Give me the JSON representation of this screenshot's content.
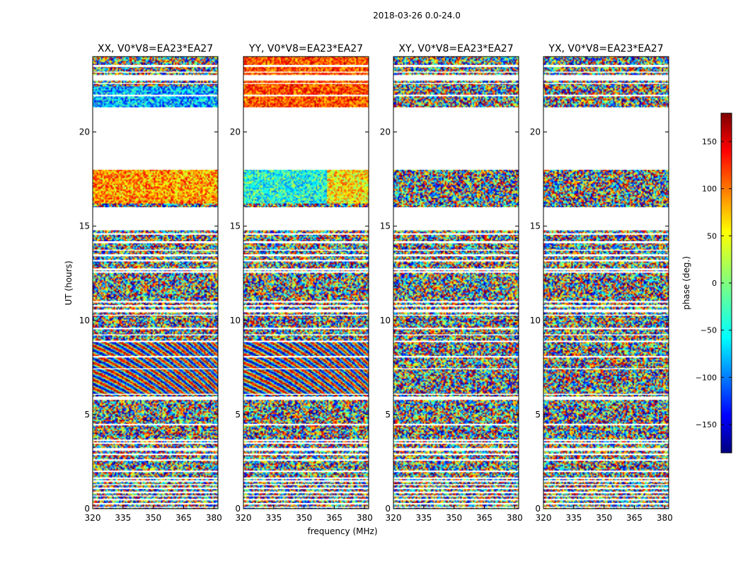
{
  "figure_title": "2018-03-26 0.0-24.0",
  "chart_data": {
    "type": "heatmap",
    "title": "2018-03-26 0.0-24.0",
    "xlabel": "frequency (MHz)",
    "ylabel": "UT (hours)",
    "xlim": [
      320,
      382
    ],
    "ylim": [
      0,
      24
    ],
    "x_ticks": [
      320,
      335,
      350,
      365,
      380
    ],
    "y_ticks": [
      0,
      5,
      10,
      15,
      20
    ],
    "panels": [
      {
        "id": "xx",
        "title": "XX, V0*V8=EA23*EA27",
        "polarization": "XX"
      },
      {
        "id": "yy",
        "title": "YY, V0*V8=EA23*EA27",
        "polarization": "YY"
      },
      {
        "id": "xy",
        "title": "XY, V0*V8=EA23*EA27",
        "polarization": "XY"
      },
      {
        "id": "yx",
        "title": "YX, V0*V8=EA23*EA27",
        "polarization": "YX"
      }
    ],
    "colorbar": {
      "label": "phase (deg.)",
      "range": [
        -180,
        180
      ],
      "ticks": [
        -150,
        -100,
        -50,
        0,
        50,
        100,
        150
      ],
      "tick_labels": [
        "−150",
        "−100",
        "−50",
        "0",
        "50",
        "100",
        "150"
      ],
      "colormap": "jet"
    },
    "data_gaps_ut_hours": [
      [
        0.05,
        0.1
      ],
      [
        0.25,
        0.3
      ],
      [
        0.45,
        0.5
      ],
      [
        0.65,
        0.7
      ],
      [
        0.85,
        0.9
      ],
      [
        1.05,
        1.1
      ],
      [
        1.25,
        1.3
      ],
      [
        1.45,
        1.5
      ],
      [
        1.6,
        1.65
      ],
      [
        1.95,
        2.0
      ],
      [
        2.55,
        2.6
      ],
      [
        2.85,
        2.9
      ],
      [
        3.1,
        3.2
      ],
      [
        3.45,
        3.5
      ],
      [
        3.6,
        3.65
      ],
      [
        4.45,
        4.5
      ],
      [
        5.8,
        5.95
      ],
      [
        6.05,
        6.1
      ],
      [
        7.4,
        7.45
      ],
      [
        8.05,
        8.1
      ],
      [
        8.85,
        8.9
      ],
      [
        9.2,
        9.25
      ],
      [
        9.55,
        9.6
      ],
      [
        10.25,
        10.3
      ],
      [
        10.45,
        10.55
      ],
      [
        10.75,
        10.8
      ],
      [
        10.95,
        11.0
      ],
      [
        12.55,
        12.6
      ],
      [
        12.65,
        12.75
      ],
      [
        13.15,
        13.2
      ],
      [
        13.4,
        13.5
      ],
      [
        13.7,
        13.75
      ],
      [
        14.1,
        14.2
      ],
      [
        14.55,
        14.6
      ],
      [
        14.8,
        16.0
      ],
      [
        18.0,
        21.3
      ],
      [
        21.9,
        21.95
      ],
      [
        22.55,
        22.6
      ],
      [
        22.75,
        23.0
      ],
      [
        23.15,
        23.2
      ],
      [
        23.45,
        23.55
      ]
    ]
  },
  "colors": {
    "gap": "#ffffff",
    "line": "#000000",
    "text": "#000000"
  }
}
